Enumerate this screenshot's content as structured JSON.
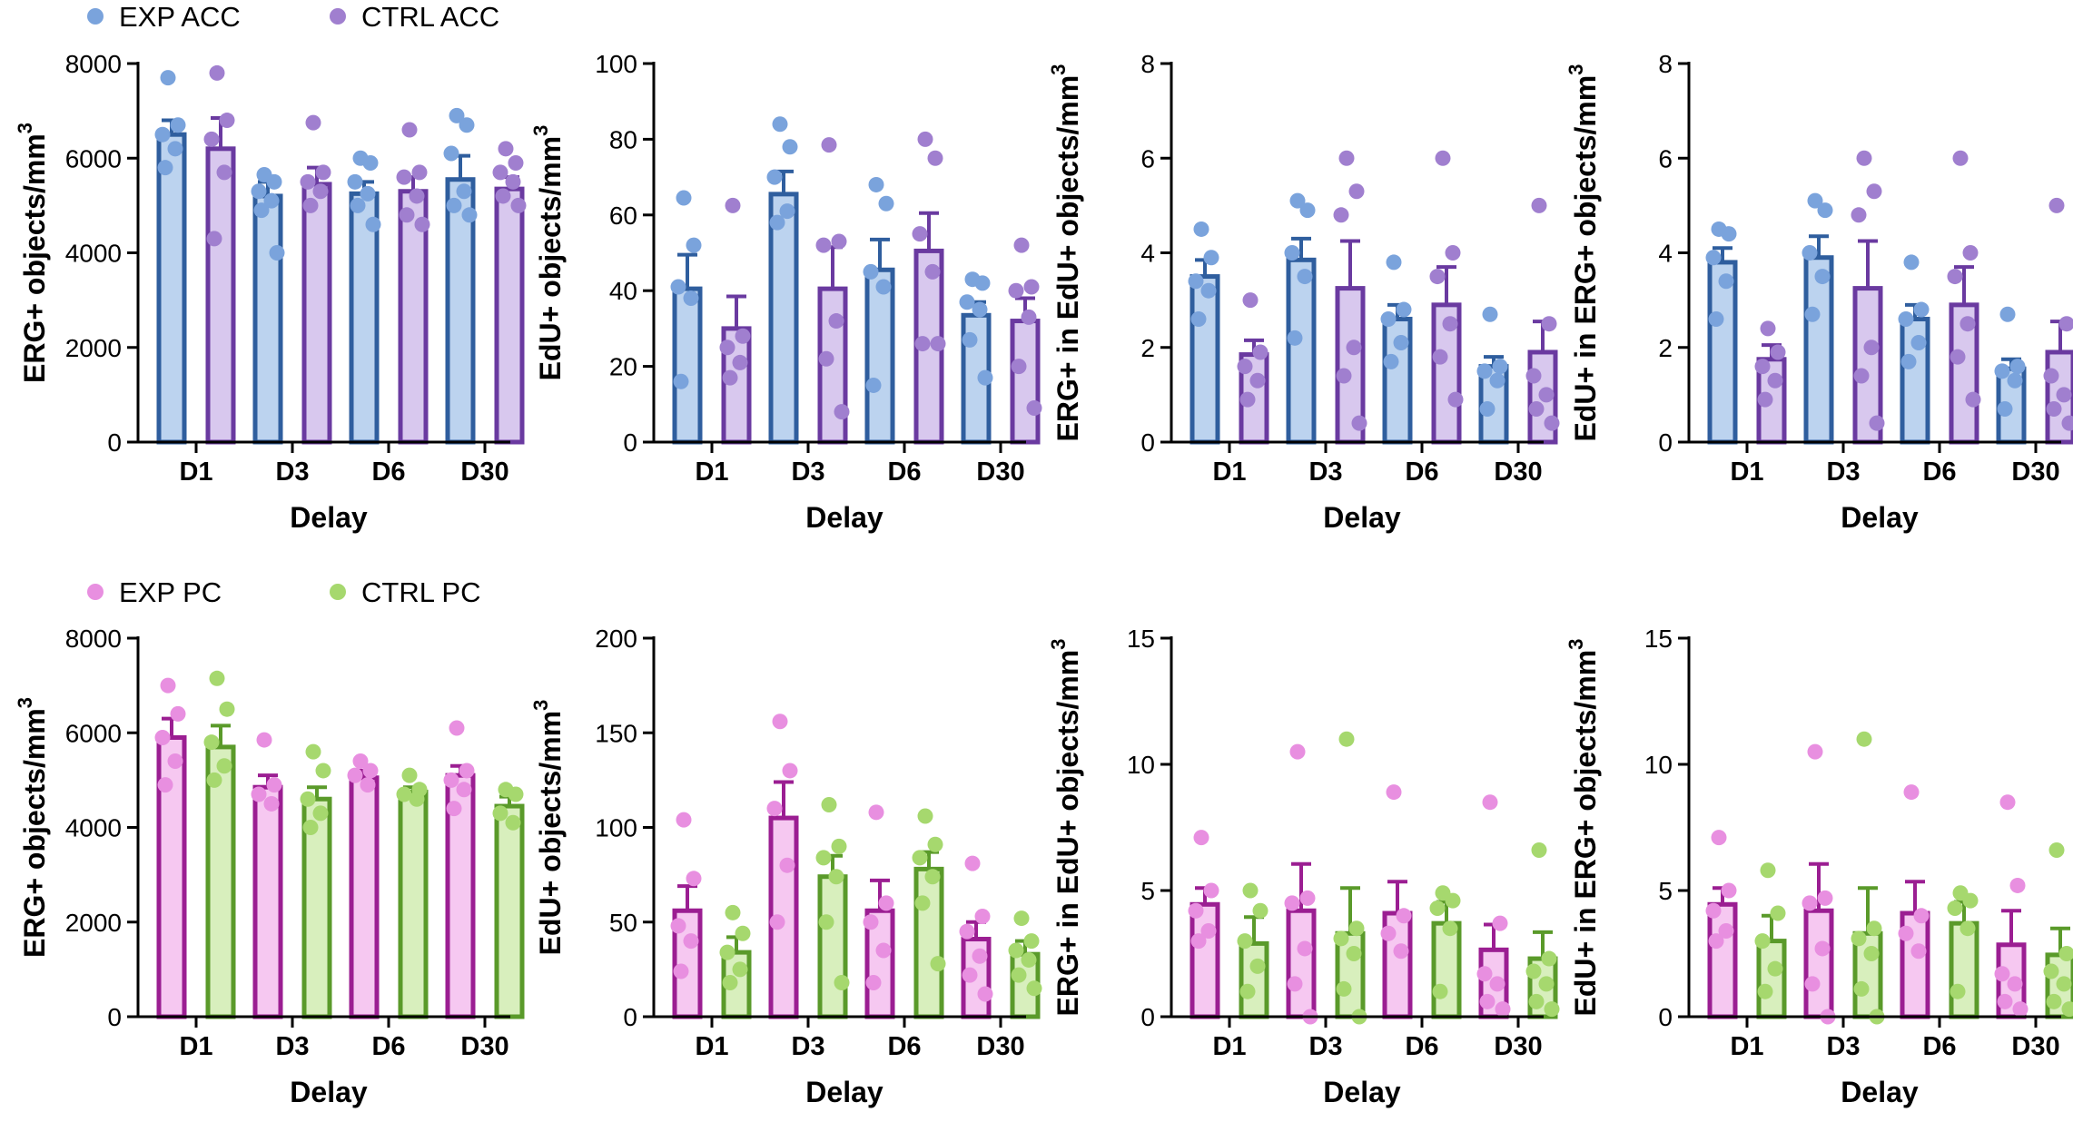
{
  "legends": [
    {
      "entries": [
        {
          "label": "EXP ACC",
          "color": "#7aa3dc"
        },
        {
          "label": "CTRL ACC",
          "color": "#a07fcf"
        }
      ]
    },
    {
      "entries": [
        {
          "label": "EXP PC",
          "color": "#e88fe0"
        },
        {
          "label": "CTRL PC",
          "color": "#a6d86e"
        }
      ]
    }
  ],
  "colors": {
    "acc_exp": {
      "fill": "#bcd3ef",
      "stroke": "#2f5e9e",
      "dot": "#7aa3dc"
    },
    "acc_ctrl": {
      "fill": "#d8c8ee",
      "stroke": "#6a3aa0",
      "dot": "#a07fcf"
    },
    "pc_exp": {
      "fill": "#f6c8f1",
      "stroke": "#9b1e92",
      "dot": "#e88fe0"
    },
    "pc_ctrl": {
      "fill": "#d8efbd",
      "stroke": "#5a9a2a",
      "dot": "#a6d86e"
    }
  },
  "chart_data": [
    {
      "type": "bar",
      "group": "acc",
      "categories": [
        "D1",
        "D3",
        "D6",
        "D30"
      ],
      "xlabel": "Delay",
      "ylabel": "ERG+ objects/mm",
      "ylabel_sup": "3",
      "ylim": [
        0,
        8000
      ],
      "yticks": [
        "0",
        "2000",
        "4000",
        "6000",
        "8000"
      ],
      "ytick_values": [
        0,
        2000,
        4000,
        6000,
        8000
      ],
      "series": [
        {
          "means": [
            6500,
            5200,
            5250,
            5550
          ],
          "errors": [
            300,
            300,
            250,
            500
          ],
          "points": [
            [
              7700,
              6700,
              6500,
              6200,
              5800
            ],
            [
              5650,
              5500,
              5300,
              5100,
              4900,
              4000
            ],
            [
              6000,
              5900,
              5500,
              5250,
              5000,
              4600
            ],
            [
              6900,
              6700,
              6100,
              5300,
              5000,
              4800
            ]
          ]
        },
        {
          "means": [
            6200,
            5450,
            5300,
            5350
          ],
          "errors": [
            650,
            350,
            300,
            250
          ],
          "points": [
            [
              7800,
              6800,
              6400,
              5700,
              4300
            ],
            [
              6750,
              5700,
              5500,
              5300,
              5000
            ],
            [
              6600,
              5700,
              5600,
              5200,
              4800,
              4600
            ],
            [
              6200,
              5900,
              5700,
              5500,
              5200,
              5000
            ]
          ]
        }
      ]
    },
    {
      "type": "bar",
      "group": "acc",
      "categories": [
        "D1",
        "D3",
        "D6",
        "D30"
      ],
      "xlabel": "Delay",
      "ylabel": "EdU+ objects/mm",
      "ylabel_sup": "3",
      "ylim": [
        0,
        100
      ],
      "yticks": [
        "0",
        "20",
        "40",
        "60",
        "80",
        "100"
      ],
      "ytick_values": [
        0,
        20,
        40,
        60,
        80,
        100
      ],
      "series": [
        {
          "means": [
            40.5,
            65.5,
            45.5,
            33.5
          ],
          "errors": [
            9,
            6,
            8,
            3.5
          ],
          "points": [
            [
              64.5,
              52,
              41,
              38,
              16
            ],
            [
              84,
              78,
              70,
              61,
              58
            ],
            [
              68,
              63,
              45,
              41,
              15
            ],
            [
              43,
              42,
              37,
              35,
              27,
              17
            ]
          ]
        },
        {
          "means": [
            30,
            40.5,
            50.5,
            32
          ],
          "errors": [
            8.5,
            11,
            10,
            6
          ],
          "points": [
            [
              62.5,
              28,
              25,
              21,
              17
            ],
            [
              78.5,
              53,
              52,
              32,
              22,
              8
            ],
            [
              80,
              75,
              55,
              45,
              26,
              26
            ],
            [
              52,
              41,
              40,
              33,
              20,
              9
            ]
          ]
        }
      ]
    },
    {
      "type": "bar",
      "group": "acc",
      "categories": [
        "D1",
        "D3",
        "D6",
        "D30"
      ],
      "xlabel": "Delay",
      "ylabel": "ERG+ in EdU+ objects/mm",
      "ylabel_sup": "3",
      "ylim": [
        0,
        8
      ],
      "yticks": [
        "0",
        "2",
        "4",
        "6",
        "8"
      ],
      "ytick_values": [
        0,
        2,
        4,
        6,
        8
      ],
      "series": [
        {
          "means": [
            3.5,
            3.85,
            2.6,
            1.6
          ],
          "errors": [
            0.35,
            0.45,
            0.3,
            0.2
          ],
          "points": [
            [
              4.5,
              3.9,
              3.4,
              3.2,
              2.6
            ],
            [
              5.1,
              4.9,
              4.0,
              3.5,
              2.2
            ],
            [
              3.8,
              2.8,
              2.6,
              2.1,
              1.7
            ],
            [
              2.7,
              1.6,
              1.5,
              1.3,
              0.7
            ]
          ]
        },
        {
          "means": [
            1.85,
            3.25,
            2.9,
            1.9
          ],
          "errors": [
            0.3,
            1.0,
            0.8,
            0.65
          ],
          "points": [
            [
              3.0,
              1.9,
              1.6,
              1.3,
              0.9
            ],
            [
              6.0,
              5.3,
              4.8,
              2.0,
              1.4,
              0.4
            ],
            [
              6.0,
              4.0,
              3.5,
              2.5,
              1.8,
              0.9
            ],
            [
              5.0,
              2.5,
              1.4,
              1.0,
              0.7,
              0.4
            ]
          ]
        }
      ]
    },
    {
      "type": "bar",
      "group": "acc",
      "categories": [
        "D1",
        "D3",
        "D6",
        "D30"
      ],
      "xlabel": "Delay",
      "ylabel": "EdU+ in ERG+ objects/mm",
      "ylabel_sup": "3",
      "ylim": [
        0,
        8
      ],
      "yticks": [
        "0",
        "2",
        "4",
        "6",
        "8"
      ],
      "ytick_values": [
        0,
        2,
        4,
        6,
        8
      ],
      "series": [
        {
          "means": [
            3.8,
            3.9,
            2.6,
            1.55
          ],
          "errors": [
            0.3,
            0.45,
            0.3,
            0.2
          ],
          "points": [
            [
              4.5,
              4.4,
              3.9,
              3.4,
              2.6
            ],
            [
              5.1,
              4.9,
              4.0,
              3.5,
              2.7
            ],
            [
              3.8,
              2.8,
              2.6,
              2.1,
              1.7
            ],
            [
              2.7,
              1.6,
              1.5,
              1.3,
              0.7
            ]
          ]
        },
        {
          "means": [
            1.75,
            3.25,
            2.9,
            1.9
          ],
          "errors": [
            0.3,
            1.0,
            0.8,
            0.65
          ],
          "points": [
            [
              2.4,
              1.9,
              1.6,
              1.3,
              0.9
            ],
            [
              6.0,
              5.3,
              4.8,
              2.0,
              1.4,
              0.4
            ],
            [
              6.0,
              4.0,
              3.5,
              2.5,
              1.8,
              0.9
            ],
            [
              5.0,
              2.5,
              1.4,
              1.0,
              0.7,
              0.4
            ]
          ]
        }
      ]
    },
    {
      "type": "bar",
      "group": "pc",
      "categories": [
        "D1",
        "D3",
        "D6",
        "D30"
      ],
      "xlabel": "Delay",
      "ylabel": "ERG+ objects/mm",
      "ylabel_sup": "3",
      "ylim": [
        0,
        8000
      ],
      "yticks": [
        "0",
        "2000",
        "4000",
        "6000",
        "8000"
      ],
      "ytick_values": [
        0,
        2000,
        4000,
        6000,
        8000
      ],
      "series": [
        {
          "means": [
            5900,
            4850,
            5050,
            5100
          ],
          "errors": [
            400,
            250,
            150,
            200
          ],
          "points": [
            [
              7000,
              6400,
              5900,
              5400,
              4900
            ],
            [
              5850,
              4900,
              4700,
              4500
            ],
            [
              5400,
              5200,
              5100,
              4900
            ],
            [
              6100,
              5200,
              5000,
              4800,
              4400
            ]
          ]
        },
        {
          "means": [
            5700,
            4600,
            4750,
            4450
          ],
          "errors": [
            450,
            250,
            100,
            200
          ],
          "points": [
            [
              7150,
              6500,
              5800,
              5300,
              5000
            ],
            [
              5600,
              5200,
              4600,
              4300,
              4000
            ],
            [
              5100,
              4800,
              4700,
              4600
            ],
            [
              4800,
              4700,
              4300,
              4100
            ]
          ]
        }
      ]
    },
    {
      "type": "bar",
      "group": "pc",
      "categories": [
        "D1",
        "D3",
        "D6",
        "D30"
      ],
      "xlabel": "Delay",
      "ylabel": "EdU+ objects/mm",
      "ylabel_sup": "3",
      "ylim": [
        0,
        200
      ],
      "yticks": [
        "0",
        "50",
        "100",
        "150",
        "200"
      ],
      "ytick_values": [
        0,
        50,
        100,
        150,
        200
      ],
      "series": [
        {
          "means": [
            56,
            105,
            56,
            41
          ],
          "errors": [
            13,
            19,
            16,
            9
          ],
          "points": [
            [
              104,
              73,
              48,
              40,
              24
            ],
            [
              156,
              130,
              110,
              80,
              50
            ],
            [
              108,
              60,
              50,
              35,
              18
            ],
            [
              81,
              53,
              45,
              32,
              22,
              12
            ]
          ]
        },
        {
          "means": [
            34,
            74,
            78,
            33
          ],
          "errors": [
            8,
            11,
            9,
            7
          ],
          "points": [
            [
              55,
              44,
              34,
              25,
              18
            ],
            [
              112,
              90,
              84,
              74,
              50,
              18
            ],
            [
              106,
              91,
              84,
              74,
              60,
              28
            ],
            [
              52,
              40,
              35,
              30,
              22,
              15
            ]
          ]
        }
      ]
    },
    {
      "type": "bar",
      "group": "pc",
      "categories": [
        "D1",
        "D3",
        "D6",
        "D30"
      ],
      "xlabel": "Delay",
      "ylabel": "ERG+ in EdU+ objects/mm",
      "ylabel_sup": "3",
      "ylim": [
        0,
        15
      ],
      "yticks": [
        "0",
        "5",
        "10",
        "15"
      ],
      "ytick_values": [
        0,
        5,
        10,
        15
      ],
      "series": [
        {
          "means": [
            4.45,
            4.2,
            4.1,
            2.65
          ],
          "errors": [
            0.65,
            1.85,
            1.25,
            1.0
          ],
          "points": [
            [
              7.1,
              5.0,
              4.2,
              3.4,
              3.0
            ],
            [
              10.5,
              4.7,
              4.5,
              2.7,
              1.3,
              0
            ],
            [
              8.9,
              4.0,
              3.3,
              2.6
            ],
            [
              8.5,
              3.7,
              1.7,
              1.3,
              0.6,
              0.3
            ]
          ]
        },
        {
          "means": [
            2.9,
            3.3,
            3.7,
            2.3
          ],
          "errors": [
            1.05,
            1.8,
            0.85,
            1.05
          ],
          "points": [
            [
              5.0,
              4.2,
              3.0,
              2.0,
              1.0
            ],
            [
              11.0,
              3.5,
              3.1,
              2.5,
              1.1,
              0
            ],
            [
              4.9,
              4.6,
              4.3,
              3.5,
              1.0
            ],
            [
              6.6,
              2.3,
              1.8,
              1.3,
              0.6,
              0.3
            ]
          ]
        }
      ]
    },
    {
      "type": "bar",
      "group": "pc",
      "categories": [
        "D1",
        "D3",
        "D6",
        "D30"
      ],
      "xlabel": "Delay",
      "ylabel": "EdU+ in ERG+ objects/mm",
      "ylabel_sup": "3",
      "ylim": [
        0,
        15
      ],
      "yticks": [
        "0",
        "5",
        "10",
        "15"
      ],
      "ytick_values": [
        0,
        5,
        10,
        15
      ],
      "series": [
        {
          "means": [
            4.45,
            4.2,
            4.1,
            2.85
          ],
          "errors": [
            0.65,
            1.85,
            1.25,
            1.35
          ],
          "points": [
            [
              7.1,
              5.0,
              4.2,
              3.4,
              3.0
            ],
            [
              10.5,
              4.7,
              4.5,
              2.7,
              1.3,
              0
            ],
            [
              8.9,
              4.0,
              3.3,
              2.6
            ],
            [
              8.5,
              5.2,
              1.7,
              1.3,
              0.6,
              0.3
            ]
          ]
        },
        {
          "means": [
            3.0,
            3.3,
            3.7,
            2.45
          ],
          "errors": [
            1.0,
            1.8,
            0.85,
            1.05
          ],
          "points": [
            [
              5.8,
              4.1,
              3.0,
              1.9,
              1.0
            ],
            [
              11.0,
              3.5,
              3.1,
              2.5,
              1.1,
              0
            ],
            [
              4.9,
              4.6,
              4.3,
              3.5,
              1.0
            ],
            [
              6.6,
              2.5,
              1.8,
              1.3,
              0.6,
              0.3
            ]
          ]
        }
      ]
    }
  ]
}
